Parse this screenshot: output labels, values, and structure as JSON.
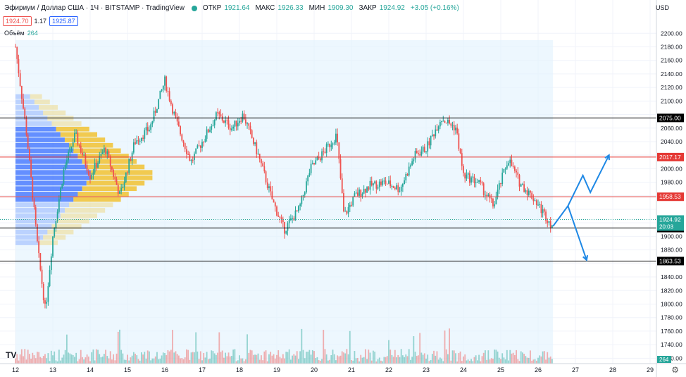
{
  "header": {
    "symbol": "Эфириум / Доллар США · 1Ч · BITSTAMP · TradingView",
    "ohlc": [
      {
        "key": "ОТКР",
        "value": "1921.64"
      },
      {
        "key": "МАКС",
        "value": "1926.33"
      },
      {
        "key": "МИН",
        "value": "1909.30"
      },
      {
        "key": "ЗАКР",
        "value": "1924.92"
      }
    ],
    "change": "+3.05 (+0.16%)",
    "sell_price": "1924.70",
    "spread": "1.17",
    "buy_price": "1925.87",
    "volume_label": "Объём",
    "volume_value": "264",
    "currency": "USD"
  },
  "colors": {
    "up": "#26a69a",
    "down": "#ef5350",
    "level_red": "#e53935",
    "level_black": "#000000",
    "arrow": "#1e88e5",
    "profile_blue": "#2962ff",
    "profile_yellow": "#f2b705",
    "range_bg": "#e3f2fd"
  },
  "chart_data": {
    "type": "candlestick",
    "xlabel": "",
    "ylabel": "",
    "x_ticks": [
      "12",
      "13",
      "14",
      "15",
      "16",
      "17",
      "18",
      "19",
      "20",
      "21",
      "22",
      "23",
      "24",
      "25",
      "26",
      "27",
      "28",
      "29"
    ],
    "y_ticks": [
      2200,
      2180,
      2160,
      2140,
      2120,
      2100,
      2080,
      2060,
      2040,
      2020,
      2000,
      1980,
      1960,
      1940,
      1920,
      1900,
      1880,
      1860,
      1840,
      1820,
      1800,
      1780,
      1760,
      1740,
      1720
    ],
    "ylim": [
      1712,
      2218
    ],
    "levels": [
      {
        "value": 2075.0,
        "label": "2075.00",
        "color": "black"
      },
      {
        "value": 2017.17,
        "label": "2017.17",
        "color": "red"
      },
      {
        "value": 1958.53,
        "label": "1958.53",
        "color": "red"
      },
      {
        "value": 1912.26,
        "label": "1912.26",
        "color": "black"
      },
      {
        "value": 1863.53,
        "label": "1863.53",
        "color": "black"
      }
    ],
    "last_price": {
      "value": 1924.92,
      "label": "1924.92",
      "countdown": "20:03"
    },
    "last_volume": "264",
    "price_path": [
      {
        "day": 12.0,
        "price": 2180
      },
      {
        "day": 12.3,
        "price": 2050
      },
      {
        "day": 12.6,
        "price": 1880
      },
      {
        "day": 12.8,
        "price": 1790
      },
      {
        "day": 13.0,
        "price": 1900
      },
      {
        "day": 13.3,
        "price": 2000
      },
      {
        "day": 13.6,
        "price": 2050
      },
      {
        "day": 14.0,
        "price": 1990
      },
      {
        "day": 14.4,
        "price": 2030
      },
      {
        "day": 14.8,
        "price": 1960
      },
      {
        "day": 15.2,
        "price": 2040
      },
      {
        "day": 15.6,
        "price": 2060
      },
      {
        "day": 16.0,
        "price": 2130
      },
      {
        "day": 16.3,
        "price": 2070
      },
      {
        "day": 16.7,
        "price": 2010
      },
      {
        "day": 17.0,
        "price": 2040
      },
      {
        "day": 17.4,
        "price": 2080
      },
      {
        "day": 17.8,
        "price": 2060
      },
      {
        "day": 18.1,
        "price": 2080
      },
      {
        "day": 18.5,
        "price": 2020
      },
      {
        "day": 18.9,
        "price": 1950
      },
      {
        "day": 19.2,
        "price": 1910
      },
      {
        "day": 19.6,
        "price": 1940
      },
      {
        "day": 19.9,
        "price": 2000
      },
      {
        "day": 20.2,
        "price": 2020
      },
      {
        "day": 20.6,
        "price": 2050
      },
      {
        "day": 20.8,
        "price": 1930
      },
      {
        "day": 21.1,
        "price": 1960
      },
      {
        "day": 21.5,
        "price": 1975
      },
      {
        "day": 21.9,
        "price": 1980
      },
      {
        "day": 22.3,
        "price": 1970
      },
      {
        "day": 22.7,
        "price": 2020
      },
      {
        "day": 23.0,
        "price": 2030
      },
      {
        "day": 23.4,
        "price": 2075
      },
      {
        "day": 23.8,
        "price": 2060
      },
      {
        "day": 24.0,
        "price": 1990
      },
      {
        "day": 24.4,
        "price": 1980
      },
      {
        "day": 24.8,
        "price": 1945
      },
      {
        "day": 25.2,
        "price": 2015
      },
      {
        "day": 25.5,
        "price": 1980
      },
      {
        "day": 25.9,
        "price": 1955
      },
      {
        "day": 26.2,
        "price": 1930
      },
      {
        "day": 26.4,
        "price": 1915
      }
    ],
    "projection_up": [
      {
        "day": 26.4,
        "price": 1915
      },
      {
        "day": 26.8,
        "price": 1945
      },
      {
        "day": 27.2,
        "price": 1990
      },
      {
        "day": 27.4,
        "price": 1965
      },
      {
        "day": 27.9,
        "price": 2020
      }
    ],
    "projection_down": [
      {
        "day": 26.8,
        "price": 1945
      },
      {
        "day": 27.3,
        "price": 1865
      }
    ]
  }
}
